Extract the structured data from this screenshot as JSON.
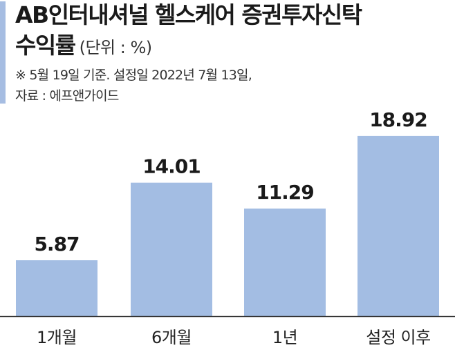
{
  "header": {
    "title_line1": "AB인터내셔널 헬스케어 증권투자신탁",
    "title_line2": "수익률",
    "unit": "(단위 : %)",
    "note_line1": "※ 5월 19일 기준. 설정일 2022년 7월 13일,",
    "note_line2": "자료 : 에프앤가이드"
  },
  "colors": {
    "bar": "#a3bde3",
    "accent": "#a6bde2",
    "axis": "#333333"
  },
  "chart_data": {
    "type": "bar",
    "categories": [
      "1개월",
      "6개월",
      "1년",
      "설정 이후"
    ],
    "values": [
      5.87,
      14.01,
      11.29,
      18.92
    ],
    "value_labels": [
      "5.87",
      "14.01",
      "11.29",
      "18.92"
    ],
    "title": "AB인터내셔널 헬스케어 증권투자신탁 수익률",
    "xlabel": "",
    "ylabel": "",
    "ylim": [
      0,
      20
    ],
    "grid": false,
    "legend": "none"
  }
}
